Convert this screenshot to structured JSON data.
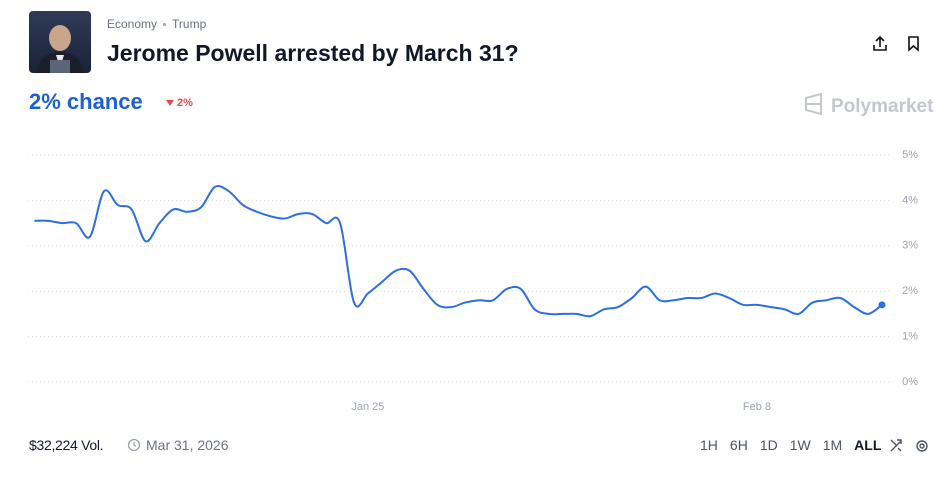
{
  "header": {
    "tags": [
      "Economy",
      "Trump"
    ],
    "title": "Jerome Powell arrested by March 31?"
  },
  "odds": {
    "chance": "2% chance",
    "change": "2%"
  },
  "brand": "Polymarket",
  "chart_data": {
    "type": "line",
    "color": "#2d6fe0",
    "categories": [
      null,
      null,
      null,
      null,
      null,
      null,
      null,
      null,
      null,
      null,
      null,
      null,
      null,
      null,
      null,
      null,
      null,
      null,
      null,
      null,
      null,
      null,
      null,
      null,
      "Jan 25",
      null,
      null,
      null,
      null,
      null,
      null,
      null,
      null,
      null,
      null,
      null,
      null,
      null,
      null,
      null,
      null,
      null,
      null,
      null,
      null,
      null,
      null,
      null,
      null,
      null,
      null,
      null,
      "Feb 8",
      null,
      null,
      null,
      null,
      null,
      null,
      null,
      null,
      null
    ],
    "values": [
      3.55,
      3.55,
      3.5,
      3.5,
      3.2,
      4.2,
      3.9,
      3.8,
      3.1,
      3.5,
      3.8,
      3.75,
      3.85,
      4.3,
      4.2,
      3.9,
      3.75,
      3.65,
      3.6,
      3.7,
      3.7,
      3.5,
      3.5,
      1.75,
      1.95,
      2.2,
      2.45,
      2.45,
      2.05,
      1.7,
      1.65,
      1.75,
      1.8,
      1.8,
      2.05,
      2.05,
      1.6,
      1.5,
      1.5,
      1.5,
      1.45,
      1.6,
      1.65,
      1.85,
      2.1,
      1.8,
      1.8,
      1.85,
      1.85,
      1.95,
      1.85,
      1.7,
      1.7,
      1.65,
      1.6,
      1.5,
      1.75,
      1.8,
      1.85,
      1.65,
      1.5,
      1.7
    ],
    "ylim": [
      0,
      5
    ],
    "yticks": [
      {
        "value": 0,
        "label": "0%"
      },
      {
        "value": 1,
        "label": "1%"
      },
      {
        "value": 2,
        "label": "2%"
      },
      {
        "value": 3,
        "label": "3%"
      },
      {
        "value": 4,
        "label": "4%"
      },
      {
        "value": 5,
        "label": "5%"
      }
    ],
    "grid": true
  },
  "footer": {
    "volume": "$32,224 Vol.",
    "end_date": "Mar 31, 2026",
    "ranges": [
      "1H",
      "6H",
      "1D",
      "1W",
      "1M",
      "ALL"
    ],
    "active_range": "ALL"
  }
}
